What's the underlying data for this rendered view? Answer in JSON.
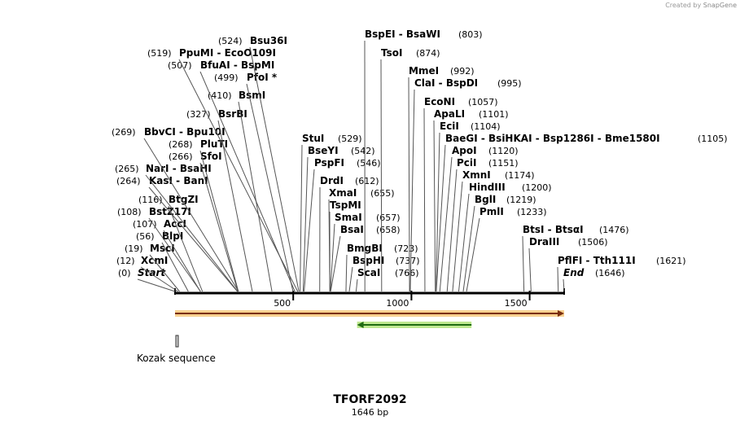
{
  "credit": {
    "prefix": "Created by",
    "brand": "SnapGene"
  },
  "sequence": {
    "name": "TFORF2092",
    "length_label": "1646 bp",
    "length": 1646
  },
  "ruler": {
    "ticks": [
      "500",
      "1000",
      "1500"
    ],
    "tick_values": [
      500,
      1000,
      1500
    ]
  },
  "features": [
    {
      "label": "Kozak sequence",
      "name": "kozak"
    }
  ],
  "sites": [
    {
      "name": "Start",
      "pos_label": "(0)",
      "pos": 0,
      "italic": true
    },
    {
      "name": "XcmI",
      "pos_label": "(12)",
      "pos": 12
    },
    {
      "name": "MscI",
      "pos_label": "(19)",
      "pos": 19
    },
    {
      "name": "BlpI",
      "pos_label": "(56)",
      "pos": 56
    },
    {
      "name": "AccI",
      "pos_label": "(107)",
      "pos": 107
    },
    {
      "name": "BstZ17I",
      "pos_label": "(108)",
      "pos": 108
    },
    {
      "name": "BtgZI",
      "pos_label": "(116)",
      "pos": 116
    },
    {
      "name": "KasI  -  BanI",
      "pos_label": "(264)",
      "pos": 264
    },
    {
      "name": "NarI  -  BsaHI",
      "pos_label": "(265)",
      "pos": 265
    },
    {
      "name": "SfoI",
      "pos_label": "(266)",
      "pos": 266
    },
    {
      "name": "PluTI",
      "pos_label": "(268)",
      "pos": 268
    },
    {
      "name": "BbvCI  -  Bpu10I",
      "pos_label": "(269)",
      "pos": 269
    },
    {
      "name": "BsrBI",
      "pos_label": "(327)",
      "pos": 327
    },
    {
      "name": "BsmI",
      "pos_label": "(410)",
      "pos": 410
    },
    {
      "name": "PfoI *",
      "pos_label": "(499)",
      "pos": 499
    },
    {
      "name": "BfuAI  -  BspMI",
      "pos_label": "(507)",
      "pos": 507
    },
    {
      "name": "PpuMI  -  EcoO109I",
      "pos_label": "(519)",
      "pos": 519
    },
    {
      "name": "Bsu36I",
      "pos_label": "(524)",
      "pos": 524
    },
    {
      "name": "StuI",
      "pos_label": "(529)",
      "pos": 529
    },
    {
      "name": "BseYI",
      "pos_label": "(542)",
      "pos": 542
    },
    {
      "name": "PspFI",
      "pos_label": "(546)",
      "pos": 546
    },
    {
      "name": "DrdI",
      "pos_label": "(612)",
      "pos": 612
    },
    {
      "name": "XmaI",
      "pos_label": "(655)",
      "pos": 655
    },
    {
      "name": "TspMI",
      "pos_label": "",
      "pos": 655
    },
    {
      "name": "SmaI",
      "pos_label": "(657)",
      "pos": 657
    },
    {
      "name": "BsaI",
      "pos_label": "(658)",
      "pos": 658
    },
    {
      "name": "BmgBI",
      "pos_label": "(723)",
      "pos": 723
    },
    {
      "name": "BspHI",
      "pos_label": "(737)",
      "pos": 737
    },
    {
      "name": "ScaI",
      "pos_label": "(766)",
      "pos": 766
    },
    {
      "name": "BspEI  -  BsaWI",
      "pos_label": "(803)",
      "pos": 803
    },
    {
      "name": "TsoI",
      "pos_label": "(874)",
      "pos": 874
    },
    {
      "name": "MmeI",
      "pos_label": "(992)",
      "pos": 992
    },
    {
      "name": "ClaI  -  BspDI",
      "pos_label": "(995)",
      "pos": 995
    },
    {
      "name": "EcoNI",
      "pos_label": "(1057)",
      "pos": 1057
    },
    {
      "name": "ApaLI",
      "pos_label": "(1101)",
      "pos": 1101
    },
    {
      "name": "EciI",
      "pos_label": "(1104)",
      "pos": 1104
    },
    {
      "name": "BaeGI  -  BsiHKAI  -  Bsp1286I  -  Bme1580I",
      "pos_label": "(1105)",
      "pos": 1105
    },
    {
      "name": "ApoI",
      "pos_label": "(1120)",
      "pos": 1120
    },
    {
      "name": "PciI",
      "pos_label": "(1151)",
      "pos": 1151
    },
    {
      "name": "XmnI",
      "pos_label": "(1174)",
      "pos": 1174
    },
    {
      "name": "HindIII",
      "pos_label": "(1200)",
      "pos": 1200
    },
    {
      "name": "BglI",
      "pos_label": "(1219)",
      "pos": 1219
    },
    {
      "name": "PmlI",
      "pos_label": "(1233)",
      "pos": 1233
    },
    {
      "name": "BtsI  -  BtsαI",
      "pos_label": "(1476)",
      "pos": 1476
    },
    {
      "name": "DraIII",
      "pos_label": "(1506)",
      "pos": 1506
    },
    {
      "name": "PflFI  -  Tth111I",
      "pos_label": "(1621)",
      "pos": 1621
    },
    {
      "name": "End",
      "pos_label": "(1646)",
      "pos": 1646,
      "italic": true
    }
  ],
  "colors": {
    "orf_fill": "#f6c26b",
    "orf_stroke": "#b5651d",
    "orf_inner": "#7a2e0e",
    "orf2_fill": "#a8e06a",
    "orf2_inner": "#1f6b12",
    "backbone": "#000000",
    "kozak_fill": "#d0d0d0"
  },
  "orfs": [
    {
      "name": "main-orf",
      "start": 0,
      "end": 1646,
      "direction": "forward"
    },
    {
      "name": "reverse-orf",
      "start": 770,
      "end": 1254,
      "direction": "reverse"
    }
  ],
  "kozak": {
    "start": 0,
    "end": 10
  }
}
